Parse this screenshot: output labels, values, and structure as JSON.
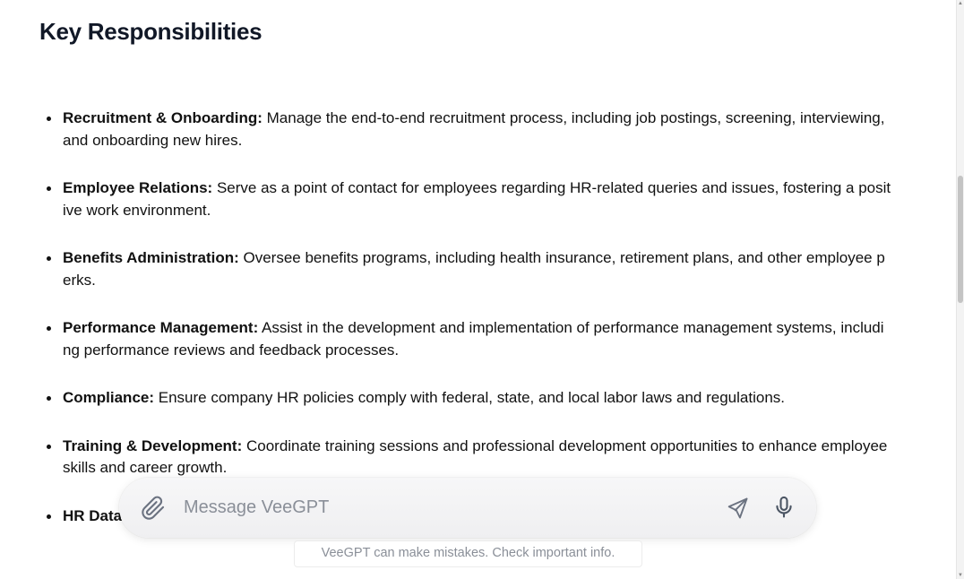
{
  "section": {
    "heading": "Key Responsibilities"
  },
  "responsibilities": [
    {
      "term": "Recruitment & Onboarding:",
      "text": " Manage the end-to-end recruitment process, including job postings, screening, interviewing, and onboarding new hires."
    },
    {
      "term": "Employee Relations:",
      "text": " Serve as a point of contact for employees regarding HR-related queries and issues, fostering a positive work environment."
    },
    {
      "term": "Benefits Administration:",
      "text": " Oversee benefits programs, including health insurance, retirement plans, and other employee perks."
    },
    {
      "term": "Performance Management:",
      "text": " Assist in the development and implementation of performance management systems, including performance reviews and feedback processes."
    },
    {
      "term": "Compliance:",
      "text": " Ensure company HR policies comply with federal, state, and local labor laws and regulations."
    },
    {
      "term": "Training & Development:",
      "text": " Coordinate training sessions and professional development opportunities to enhance employee skills and career growth."
    },
    {
      "term": "HR Data",
      "text": ""
    }
  ],
  "composer": {
    "placeholder": "Message VeeGPT",
    "attach_icon": "paperclip-icon",
    "send_icon": "send-icon",
    "mic_icon": "microphone-icon"
  },
  "footer": {
    "disclaimer": "VeeGPT can make mistakes. Check important info."
  }
}
